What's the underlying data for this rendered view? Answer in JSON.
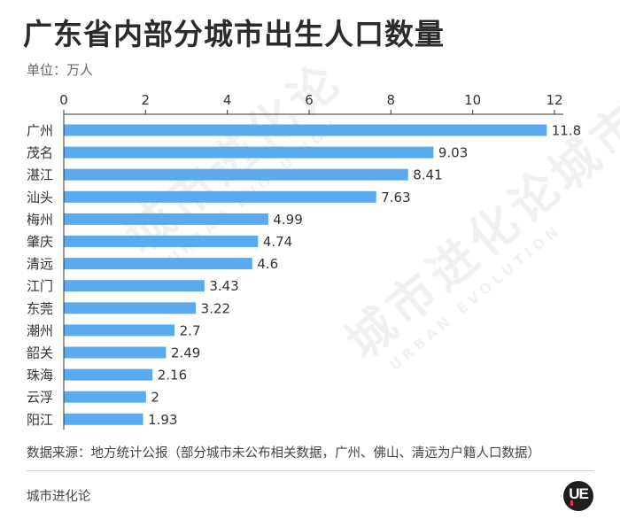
{
  "title": "广东省内部分城市出生人口数量",
  "unit_label": "单位：万人",
  "source_note": "数据来源：地方统计公报（部分城市未公布相关数据，广州、佛山、清远为户籍人口数据）",
  "footer_brand": "城市进化论",
  "logo_text": "UE",
  "watermark": {
    "cn": "城市进化论",
    "en": "URBAN EVOLUTION"
  },
  "colors": {
    "bar": "#5aaaef",
    "axis": "#333333",
    "text": "#333333",
    "logo_bg": "#1f1f1f",
    "logo_accent": "#e8384f"
  },
  "chart_data": {
    "type": "bar",
    "orientation": "horizontal",
    "title": "广东省内部分城市出生人口数量",
    "xlabel": "",
    "ylabel": "",
    "unit": "万人",
    "xlim": [
      0,
      12
    ],
    "x_ticks": [
      0,
      2,
      4,
      6,
      8,
      10,
      12
    ],
    "axis_position": "top",
    "grid": false,
    "categories": [
      "广州",
      "茂名",
      "湛江",
      "汕头",
      "梅州",
      "肇庆",
      "清远",
      "江门",
      "东莞",
      "潮州",
      "韶关",
      "珠海",
      "云浮",
      "阳江"
    ],
    "values": [
      11.8,
      9.03,
      8.41,
      7.63,
      4.99,
      4.74,
      4.6,
      3.43,
      3.22,
      2.7,
      2.49,
      2.16,
      2,
      1.93
    ],
    "value_labels": [
      "11.8",
      "9.03",
      "8.41",
      "7.63",
      "4.99",
      "4.74",
      "4.6",
      "3.43",
      "3.22",
      "2.7",
      "2.49",
      "2.16",
      "2",
      "1.93"
    ]
  }
}
